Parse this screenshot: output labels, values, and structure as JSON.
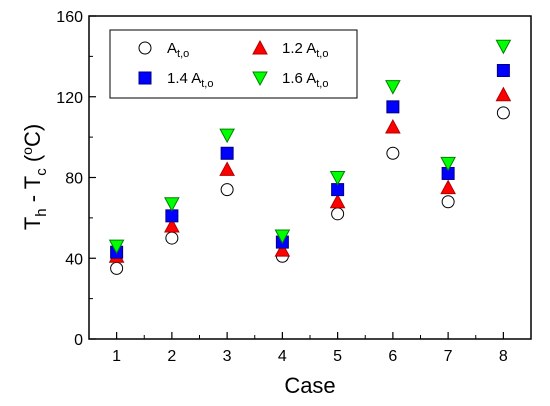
{
  "chart_data": {
    "type": "scatter",
    "xlabel": "Case",
    "ylabel": {
      "main": "T",
      "sub1": "h",
      "mid": " - T",
      "sub2": "c",
      "open": " (",
      "sup": "o",
      "close": "C)"
    },
    "categories": [
      "1",
      "2",
      "3",
      "4",
      "5",
      "6",
      "7",
      "8"
    ],
    "xlim": [
      0.5,
      8.5
    ],
    "ylim": [
      0,
      160
    ],
    "yticks": [
      "0",
      "40",
      "80",
      "120",
      "160"
    ],
    "grid": false,
    "legend_position": "top-left",
    "series": [
      {
        "name": {
          "coef": "",
          "main": "A",
          "sub": "t,o"
        },
        "marker": "circle",
        "fill": "#ffffff",
        "stroke": "#000000",
        "values": [
          35,
          50,
          74,
          41,
          62,
          92,
          68,
          112
        ]
      },
      {
        "name": {
          "coef": "1.2 ",
          "main": "A",
          "sub": "t,o"
        },
        "marker": "triangle-up",
        "fill": "#ff0000",
        "stroke": "#b00000",
        "values": [
          41,
          56,
          84,
          44,
          68,
          105,
          75,
          121
        ]
      },
      {
        "name": {
          "coef": "1.4 ",
          "main": "A",
          "sub": "t,o"
        },
        "marker": "square",
        "fill": "#0000ff",
        "stroke": "#000080",
        "values": [
          43,
          61,
          92,
          48,
          74,
          115,
          82,
          133
        ]
      },
      {
        "name": {
          "coef": "1.6 ",
          "main": "A",
          "sub": "t,o"
        },
        "marker": "triangle-down",
        "fill": "#00ff00",
        "stroke": "#008000",
        "values": [
          46,
          67,
          101,
          51,
          80,
          125,
          87,
          145
        ]
      }
    ]
  }
}
